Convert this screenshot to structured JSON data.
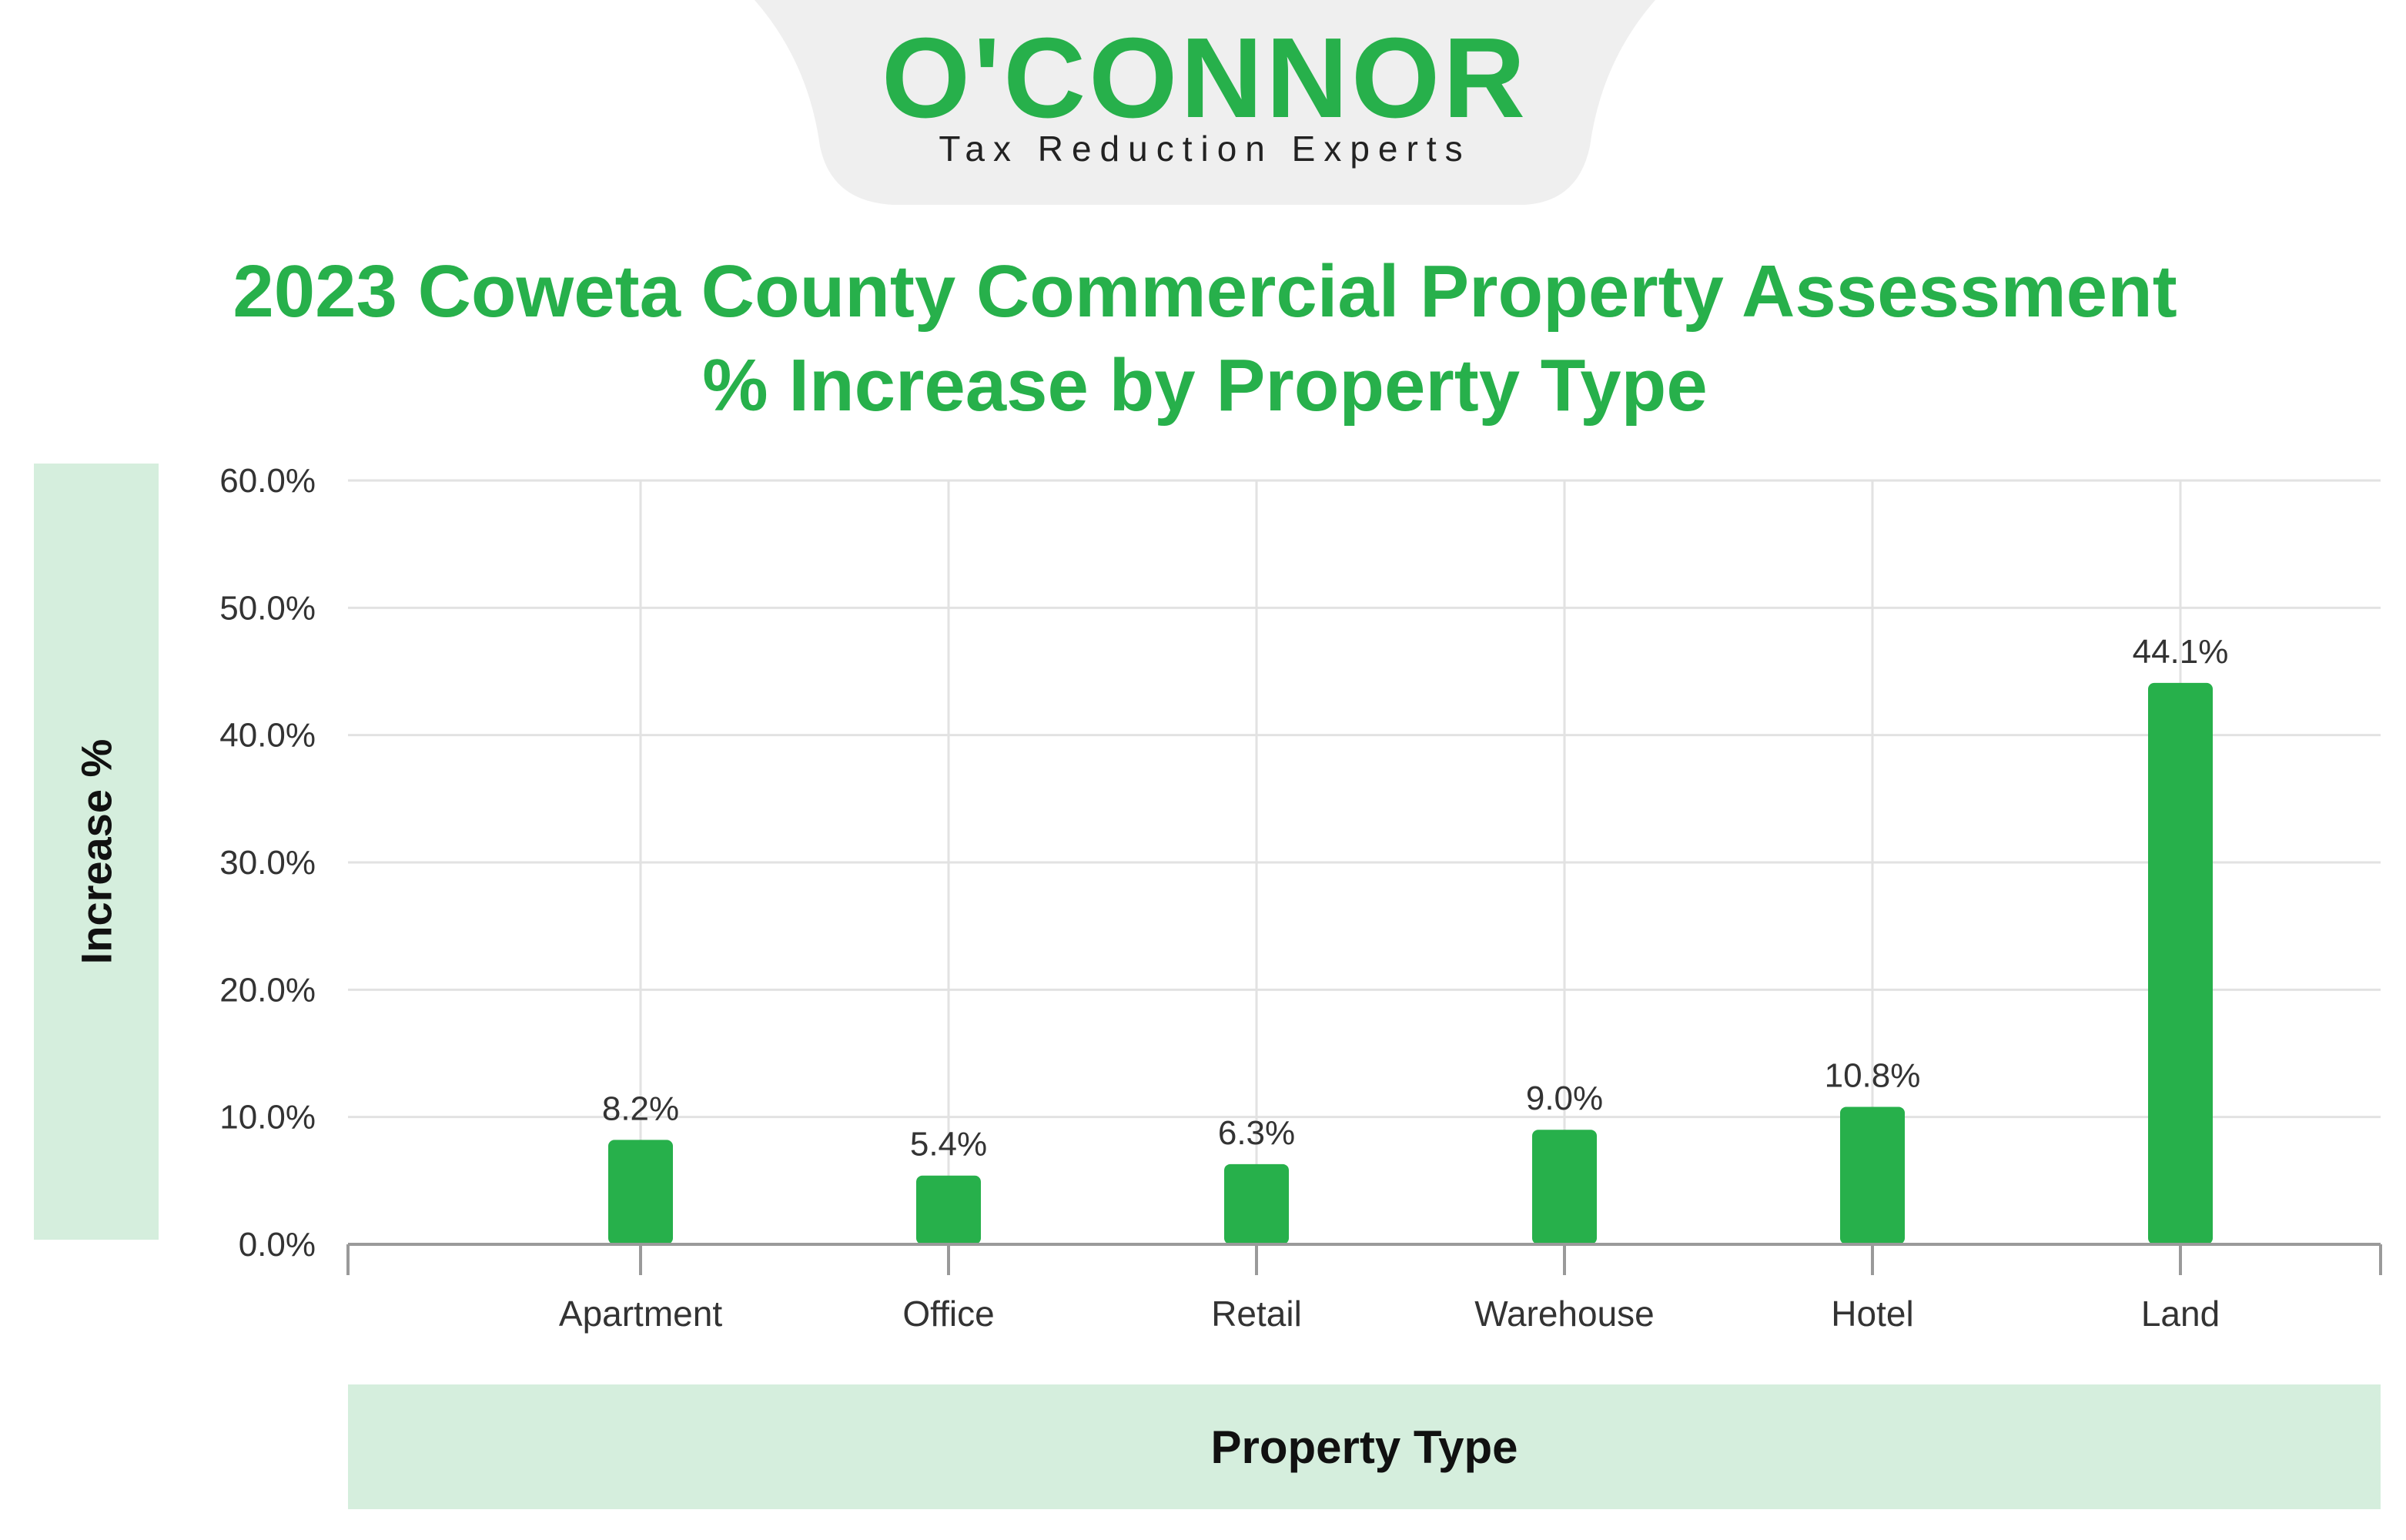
{
  "brand": {
    "name": "O'CONNOR",
    "tagline": "Tax Reduction Experts",
    "color": "#27b04b",
    "tab_color": "#efefef"
  },
  "chart_data": {
    "type": "bar",
    "title": "2023 Coweta County Commercial Property Assessment % Increase by Property Type",
    "xlabel": "Property Type",
    "ylabel": "Increase %",
    "categories": [
      "Apartment",
      "Office",
      "Retail",
      "Warehouse",
      "Hotel",
      "Land"
    ],
    "values": [
      8.2,
      5.4,
      6.3,
      9.0,
      10.8,
      44.1
    ],
    "data_labels": [
      "8.2%",
      "5.4%",
      "6.3%",
      "9.0%",
      "10.8%",
      "44.1%"
    ],
    "ylim": [
      0,
      60
    ],
    "yticks": [
      "0.0%",
      "10.0%",
      "20.0%",
      "30.0%",
      "40.0%",
      "50.0%",
      "60.0%"
    ],
    "grid": true,
    "bar_color": "#27b04b",
    "label_band_color": "#d5eedd"
  }
}
